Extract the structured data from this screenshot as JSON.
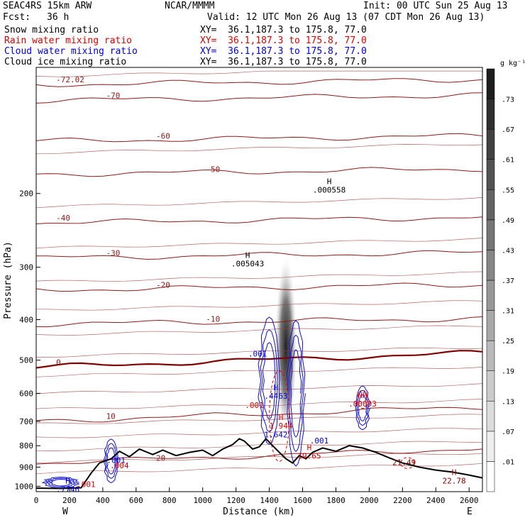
{
  "header": {
    "model": "SEAC4RS 15km ARW",
    "org": "NCAR/MMMM",
    "init": "Init: 00 UTC Sun 25 Aug 13",
    "fcst_label": "Fcst:",
    "fcst_value": "36 h",
    "valid": "Valid: 12 UTC Mon 26 Aug 13 (07 CDT Mon 26 Aug 13)"
  },
  "fields": [
    {
      "name": "Snow mixing ratio",
      "xy": "XY=  36.1,187.3 to 175.8, 77.0",
      "color": "#000000"
    },
    {
      "name": "Rain water mixing ratio",
      "xy": "XY=  36.1,187.3 to 175.8, 77.0",
      "color": "#e00000"
    },
    {
      "name": "Cloud water mixing ratio",
      "xy": "XY=  36.1,187.3 to 175.8, 77.0",
      "color": "#0000e0"
    },
    {
      "name": "Cloud ice mixing ratio",
      "xy": "XY=  36.1,187.3 to 175.8, 77.0",
      "color": "#000000"
    }
  ],
  "chart_data": {
    "type": "line",
    "xlabel": "Distance (km)",
    "ylabel": "Pressure (hPa)",
    "x_ticks": [
      "0",
      "200",
      "400",
      "600",
      "800",
      "1000",
      "1200",
      "1400",
      "1600",
      "1800",
      "2000",
      "2200",
      "2400",
      "2600"
    ],
    "y_ticks": [
      "200",
      "300",
      "400",
      "500",
      "600",
      "700",
      "800",
      "900",
      "1000"
    ],
    "x_range": [
      0,
      2680
    ],
    "y_range_hPa": [
      100,
      1030
    ],
    "y_scale": "log",
    "left_end": "W",
    "right_end": "E",
    "colorbar": {
      "unit": "g kg⁻¹",
      "labels": [
        ".01",
        ".07",
        ".13",
        ".19",
        ".25",
        ".31",
        ".37",
        ".43",
        ".49",
        ".55",
        ".61",
        ".67",
        ".73"
      ]
    },
    "temperature_contours_C": [
      {
        "label": "-72.02",
        "t": -72.02
      },
      {
        "label": "-70",
        "t": -70
      },
      {
        "label": "-60",
        "t": -60
      },
      {
        "label": "-50",
        "t": -50
      },
      {
        "label": "-40",
        "t": -40
      },
      {
        "label": "-30",
        "t": -30
      },
      {
        "label": "-20",
        "t": -20
      },
      {
        "label": "-10",
        "t": -10
      },
      {
        "label": "0",
        "t": 0
      },
      {
        "label": "10",
        "t": 10
      },
      {
        "label": "20",
        "t": 20
      }
    ],
    "terrain": [
      {
        "x": 0,
        "p": 1010
      },
      {
        "x": 150,
        "p": 1012
      },
      {
        "x": 270,
        "p": 1008
      },
      {
        "x": 330,
        "p": 930
      },
      {
        "x": 380,
        "p": 880
      },
      {
        "x": 450,
        "p": 860
      },
      {
        "x": 500,
        "p": 825
      },
      {
        "x": 560,
        "p": 850
      },
      {
        "x": 620,
        "p": 815
      },
      {
        "x": 700,
        "p": 840
      },
      {
        "x": 760,
        "p": 820
      },
      {
        "x": 840,
        "p": 845
      },
      {
        "x": 920,
        "p": 830
      },
      {
        "x": 1000,
        "p": 820
      },
      {
        "x": 1060,
        "p": 845
      },
      {
        "x": 1120,
        "p": 815
      },
      {
        "x": 1180,
        "p": 795
      },
      {
        "x": 1220,
        "p": 770
      },
      {
        "x": 1250,
        "p": 780
      },
      {
        "x": 1300,
        "p": 815
      },
      {
        "x": 1340,
        "p": 805
      },
      {
        "x": 1380,
        "p": 770
      },
      {
        "x": 1420,
        "p": 800
      },
      {
        "x": 1460,
        "p": 830
      },
      {
        "x": 1500,
        "p": 860
      },
      {
        "x": 1540,
        "p": 880
      },
      {
        "x": 1580,
        "p": 845
      },
      {
        "x": 1620,
        "p": 860
      },
      {
        "x": 1660,
        "p": 830
      },
      {
        "x": 1720,
        "p": 810
      },
      {
        "x": 1800,
        "p": 825
      },
      {
        "x": 1880,
        "p": 800
      },
      {
        "x": 1960,
        "p": 810
      },
      {
        "x": 2040,
        "p": 830
      },
      {
        "x": 2120,
        "p": 855
      },
      {
        "x": 2200,
        "p": 880
      },
      {
        "x": 2300,
        "p": 900
      },
      {
        "x": 2400,
        "p": 915
      },
      {
        "x": 2500,
        "p": 925
      },
      {
        "x": 2600,
        "p": 940
      },
      {
        "x": 2680,
        "p": 955
      }
    ],
    "annotations": [
      {
        "text": "H",
        "sub": ".000558",
        "x": 1760,
        "p": 190,
        "color": "#000000"
      },
      {
        "text": "H",
        "sub": ".005043",
        "x": 1270,
        "p": 285,
        "color": "#000000"
      },
      {
        "text": ".001",
        "x": 1330,
        "p": 490,
        "color": "#0000e0"
      },
      {
        "text": "H",
        "sub": ".4463",
        "x": 1440,
        "p": 590,
        "color": "#0000e0"
      },
      {
        "text": ".001",
        "x": 1310,
        "p": 650,
        "color": "#e00000"
      },
      {
        "text": "H",
        "sub": "1.944",
        "x": 1470,
        "p": 695,
        "color": "#e00000"
      },
      {
        "text": "1.642",
        "x": 1440,
        "p": 765,
        "color": "#0000e0"
      },
      {
        "text": ".001",
        "x": 1700,
        "p": 790,
        "color": "#0000e0"
      },
      {
        "text": "HH",
        "sub": ".00093",
        "x": 1960,
        "p": 615,
        "color": "#e00000"
      },
      {
        "text": "H",
        "sub": "19.65",
        "x": 1640,
        "p": 820,
        "color": "#e00000"
      },
      {
        "text": "21.49",
        "x": 2210,
        "p": 890,
        "color": "#8b0000"
      },
      {
        "text": "H",
        "sub": "22.78",
        "x": 2510,
        "p": 940,
        "color": "#8b0000"
      },
      {
        "text": ".001",
        "x": 480,
        "p": 880,
        "color": "#0000e0"
      },
      {
        "text": ".004",
        "x": 500,
        "p": 905,
        "color": "#e00000"
      },
      {
        "text": "H",
        "sub": ".7746",
        "x": 190,
        "p": 985,
        "color": "#0000e0"
      },
      {
        "text": ".001",
        "x": 300,
        "p": 1005,
        "color": "#e00000"
      }
    ]
  }
}
